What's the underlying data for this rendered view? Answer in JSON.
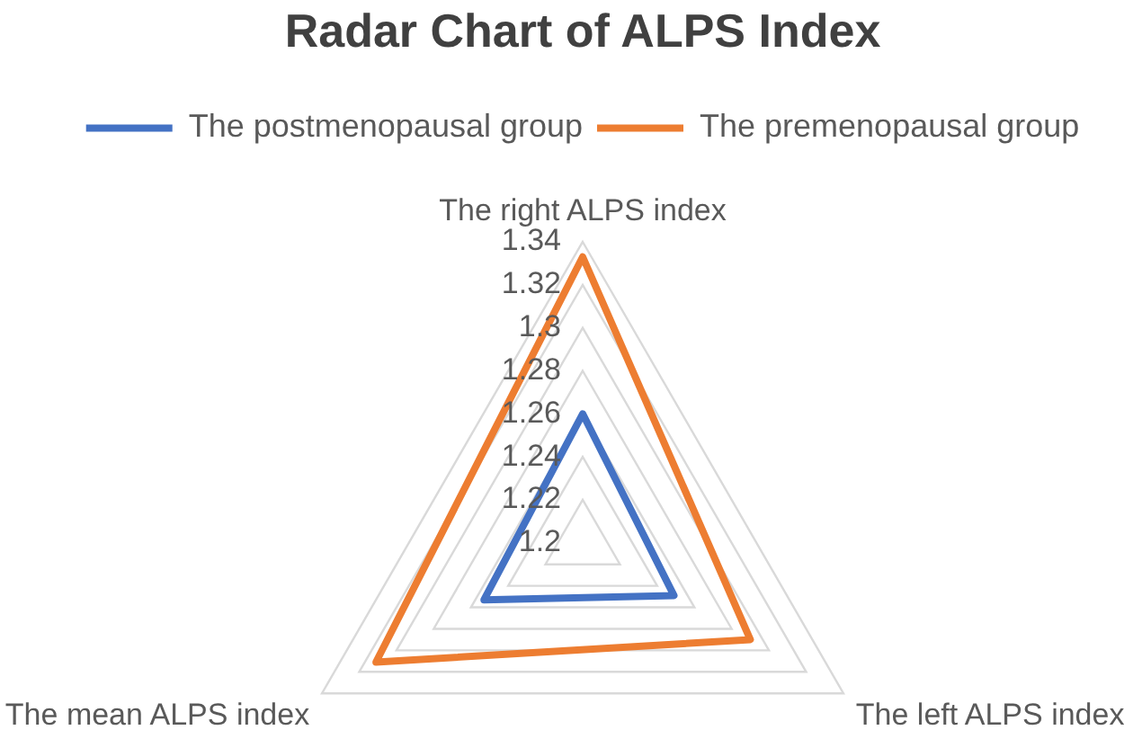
{
  "chart_data": {
    "type": "radar",
    "title": "Radar Chart of ALPS Index",
    "categories": [
      "The right ALPS index",
      "The left ALPS index",
      "The mean ALPS index"
    ],
    "series": [
      {
        "name": "The postmenopausal group",
        "color": "#4472c4",
        "values": [
          1.26,
          1.249,
          1.253
        ]
      },
      {
        "name": "The premenopausal group",
        "color": "#ed7d31",
        "values": [
          1.333,
          1.29,
          1.311
        ]
      }
    ],
    "ylim": [
      1.2,
      1.34
    ],
    "yticks": [
      1.2,
      1.22,
      1.24,
      1.26,
      1.28,
      1.3,
      1.32,
      1.34
    ],
    "grid": true,
    "legend": "top",
    "marker": "none"
  }
}
